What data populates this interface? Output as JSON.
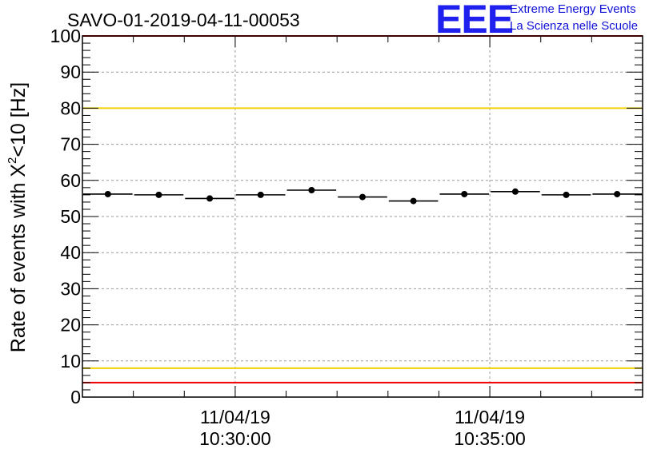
{
  "header": {
    "title": "SAVO-01-2019-04-11-00053",
    "logo_text": "EEE",
    "logo_line1": "Extreme Energy Events",
    "logo_line2": "La Scienza nelle Scuole"
  },
  "colors": {
    "red_limit": "#ee0000",
    "yellow_limit": "#f0d000",
    "logo": "#1f1fee",
    "grid": "#999999",
    "data": "#000000"
  },
  "chart_data": {
    "type": "scatter",
    "title": "SAVO-01-2019-04-11-00053",
    "xlabel": "",
    "ylabel": "Rate of events with X²<10 [Hz]",
    "ylabel_parts": [
      "Rate of events with X",
      "2",
      "<10 [Hz]"
    ],
    "xlim_seconds_from_10_27_00": [
      0,
      660
    ],
    "ylim": [
      0,
      100
    ],
    "y_ticks": [
      0,
      10,
      20,
      30,
      40,
      50,
      60,
      70,
      80,
      90,
      100
    ],
    "x_ticks": [
      {
        "t": 180,
        "date": "11/04/19",
        "time": "10:30:00"
      },
      {
        "t": 480,
        "date": "11/04/19",
        "time": "10:35:00"
      }
    ],
    "x_grid_seconds": [
      180,
      480
    ],
    "bin_width_seconds": 60,
    "series": [
      {
        "name": "rate",
        "x_centers_seconds": [
          30,
          90,
          150,
          210,
          270,
          330,
          390,
          450,
          510,
          570,
          630
        ],
        "values": [
          56.2,
          56.0,
          55.0,
          56.0,
          57.3,
          55.4,
          54.3,
          56.2,
          56.9,
          56.0,
          56.2
        ]
      }
    ],
    "reference_lines": [
      {
        "name": "upper-red-limit",
        "y": 100,
        "color": "#ee0000"
      },
      {
        "name": "upper-yellow-limit",
        "y": 80,
        "color": "#f0d000"
      },
      {
        "name": "lower-yellow-limit",
        "y": 8,
        "color": "#f0d000"
      },
      {
        "name": "lower-red-limit",
        "y": 4,
        "color": "#ee0000"
      }
    ],
    "grid": true,
    "legend": "none"
  }
}
